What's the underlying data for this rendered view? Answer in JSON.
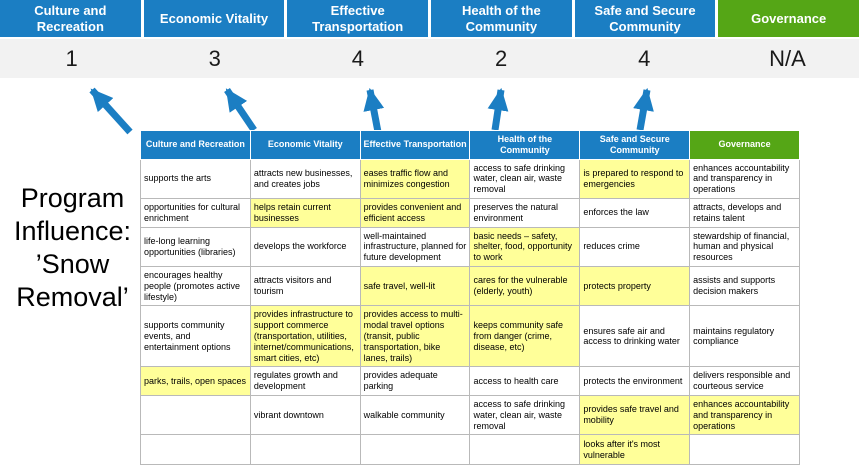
{
  "title": {
    "text": "Program Influence: ’Snow Removal’"
  },
  "colors": {
    "header_blue": "#1b7ec3",
    "header_green": "#55a616",
    "highlight_yellow": "#ffff99",
    "score_band_bg": "#f2f2f2",
    "arrow_blue": "#1b7ec3"
  },
  "scoreboard": {
    "columns": [
      {
        "label": "Culture and Recreation",
        "score": "1",
        "color": "blue"
      },
      {
        "label": "Economic Vitality",
        "score": "3",
        "color": "blue"
      },
      {
        "label": "Effective Transportation",
        "score": "4",
        "color": "blue"
      },
      {
        "label": "Health of the Community",
        "score": "2",
        "color": "blue"
      },
      {
        "label": "Safe and Secure Community",
        "score": "4",
        "color": "blue"
      },
      {
        "label": "Governance",
        "score": "N/A",
        "color": "green"
      }
    ]
  },
  "matrix": {
    "headers": [
      {
        "label": "Culture and Recreation",
        "color": "blue"
      },
      {
        "label": "Economic Vitality",
        "color": "blue"
      },
      {
        "label": "Effective Transportation",
        "color": "blue"
      },
      {
        "label": "Health of the Community",
        "color": "blue"
      },
      {
        "label": "Safe and Secure Community",
        "color": "blue"
      },
      {
        "label": "Governance",
        "color": "green"
      }
    ],
    "rows": [
      [
        {
          "text": "supports the arts",
          "highlight": false
        },
        {
          "text": "attracts new businesses, and creates jobs",
          "highlight": false
        },
        {
          "text": "eases traffic flow and minimizes congestion",
          "highlight": true
        },
        {
          "text": "access to safe drinking water, clean air, waste removal",
          "highlight": false
        },
        {
          "text": "is prepared to respond to emergencies",
          "highlight": true
        },
        {
          "text": "enhances accountability and transparency in operations",
          "highlight": false
        }
      ],
      [
        {
          "text": "opportunities for cultural enrichment",
          "highlight": false
        },
        {
          "text": "helps retain current businesses",
          "highlight": true
        },
        {
          "text": "provides convenient and efficient access",
          "highlight": true
        },
        {
          "text": "preserves the natural environment",
          "highlight": false
        },
        {
          "text": "enforces the law",
          "highlight": false
        },
        {
          "text": "attracts, develops and retains talent",
          "highlight": false
        }
      ],
      [
        {
          "text": "life-long learning opportunities (libraries)",
          "highlight": false
        },
        {
          "text": "develops the workforce",
          "highlight": false
        },
        {
          "text": "well-maintained infrastructure, planned for future development",
          "highlight": false
        },
        {
          "text": "basic needs – safety, shelter, food, opportunity to work",
          "highlight": true
        },
        {
          "text": "reduces crime",
          "highlight": false
        },
        {
          "text": "stewardship of financial, human and physical resources",
          "highlight": false
        }
      ],
      [
        {
          "text": "encourages healthy people (promotes active lifestyle)",
          "highlight": false
        },
        {
          "text": "attracts visitors and tourism",
          "highlight": false
        },
        {
          "text": "safe travel, well-lit",
          "highlight": true
        },
        {
          "text": "cares for the vulnerable (elderly, youth)",
          "highlight": true
        },
        {
          "text": "protects property",
          "highlight": true
        },
        {
          "text": "assists and supports decision makers",
          "highlight": false
        }
      ],
      [
        {
          "text": "supports community events, and entertainment options",
          "highlight": false
        },
        {
          "text": "provides infrastructure to support commerce (transportation, utilities, internet/communications, smart cities, etc)",
          "highlight": true
        },
        {
          "text": "provides access to multi-modal travel options (transit, public transportation, bike lanes, trails)",
          "highlight": true
        },
        {
          "text": "keeps community safe from danger (crime, disease, etc)",
          "highlight": true
        },
        {
          "text": "ensures safe air and access to drinking water",
          "highlight": false
        },
        {
          "text": "maintains regulatory compliance",
          "highlight": false
        }
      ],
      [
        {
          "text": "parks, trails, open spaces",
          "highlight": true
        },
        {
          "text": "regulates growth and development",
          "highlight": false
        },
        {
          "text": "provides adequate parking",
          "highlight": false
        },
        {
          "text": "access to health care",
          "highlight": false
        },
        {
          "text": "protects the environment",
          "highlight": false
        },
        {
          "text": "delivers responsible and courteous service",
          "highlight": false
        }
      ],
      [
        {
          "text": "",
          "highlight": false
        },
        {
          "text": "vibrant downtown",
          "highlight": false
        },
        {
          "text": "walkable community",
          "highlight": false
        },
        {
          "text": "access to safe drinking water, clean air, waste removal",
          "highlight": false
        },
        {
          "text": "provides safe travel and mobility",
          "highlight": true
        },
        {
          "text": "enhances accountability and transparency in operations",
          "highlight": true
        }
      ],
      [
        {
          "text": "",
          "highlight": false
        },
        {
          "text": "",
          "highlight": false
        },
        {
          "text": "",
          "highlight": false
        },
        {
          "text": "",
          "highlight": false
        },
        {
          "text": "looks after it's most vulnerable",
          "highlight": true
        },
        {
          "text": "",
          "highlight": false
        }
      ]
    ]
  }
}
